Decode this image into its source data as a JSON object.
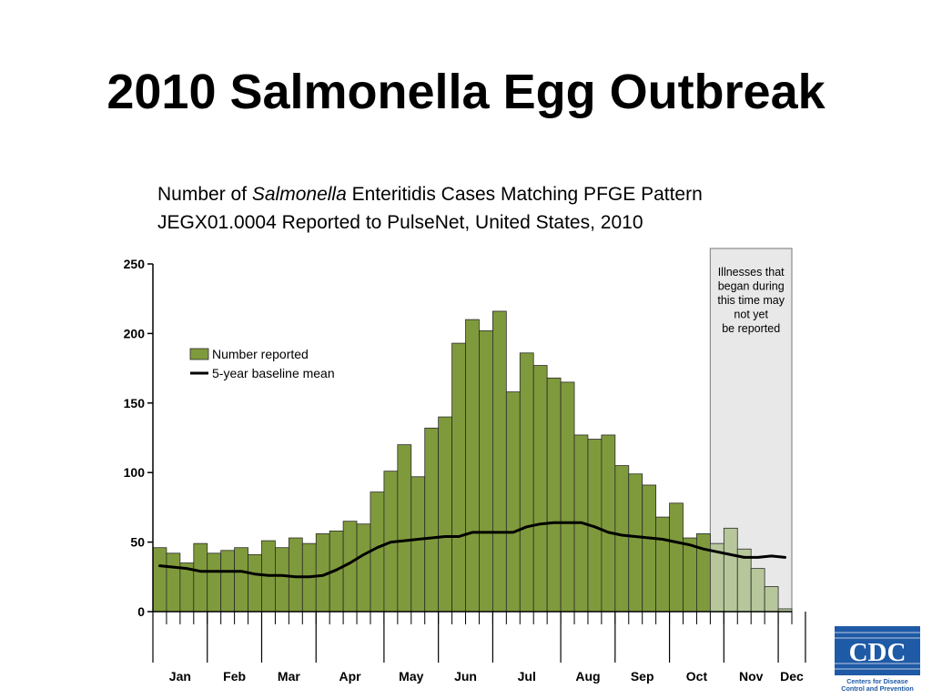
{
  "slide": {
    "title": "2010 Salmonella Egg Outbreak"
  },
  "subtitle": {
    "line1_before": "Number of ",
    "line1_italic": "Salmonella",
    "line1_after": " Enteritidis Cases Matching PFGE Pattern",
    "line2": "JEGX01.0004 Reported to PulseNet, United States, 2010"
  },
  "logo": {
    "text": "CDC",
    "tagline_line1": "Centers for Disease",
    "tagline_line2": "Control and Prevention"
  },
  "chart_data": {
    "type": "bar",
    "title": "",
    "xlabel": "",
    "ylabel": "",
    "ylim": [
      0,
      250
    ],
    "yticks": [
      0,
      50,
      100,
      150,
      200,
      250
    ],
    "grid": false,
    "legend_position": "top-left",
    "months": [
      "Jan",
      "Feb",
      "Mar",
      "Apr",
      "May",
      "Jun",
      "Jul",
      "Aug",
      "Sep",
      "Oct",
      "Nov",
      "Dec"
    ],
    "weeks_per_month": [
      4,
      4,
      4,
      5,
      4,
      4,
      5,
      4,
      4,
      4,
      4,
      2
    ],
    "series": [
      {
        "name": "Number reported",
        "kind": "bar",
        "color": "#7f9a3c",
        "values": [
          46,
          42,
          35,
          49,
          42,
          44,
          46,
          41,
          51,
          46,
          53,
          49,
          56,
          58,
          65,
          63,
          86,
          101,
          120,
          97,
          132,
          140,
          193,
          210,
          202,
          216,
          158,
          186,
          177,
          168,
          165,
          127,
          124,
          127,
          105,
          99,
          91,
          68,
          78,
          53,
          56,
          49,
          60,
          45,
          31,
          18,
          2
        ]
      },
      {
        "name": "5-year baseline mean",
        "kind": "line",
        "color": "#000000",
        "values": [
          33,
          32,
          31,
          29,
          29,
          29,
          29,
          27,
          26,
          26,
          25,
          25,
          26,
          30,
          35,
          41,
          46,
          50,
          51,
          52,
          53,
          54,
          54,
          57,
          57,
          57,
          57,
          61,
          63,
          64,
          64,
          64,
          61,
          57,
          55,
          54,
          53,
          52,
          50,
          48,
          45,
          43,
          41,
          39,
          39,
          40,
          39
        ]
      }
    ],
    "lag_period": {
      "start_week_index": 41,
      "fill": "#e8e8e8",
      "faded_bar_color": "#b7c79b",
      "annotation": [
        "Illnesses that",
        "began during",
        "this time may",
        "not yet",
        "be reported"
      ]
    }
  }
}
